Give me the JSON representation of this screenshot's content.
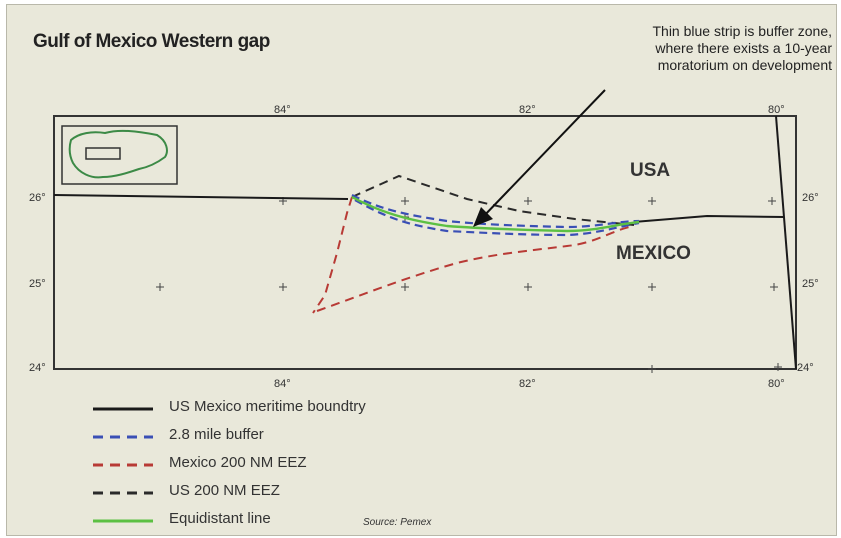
{
  "title": "Gulf of Mexico Western gap",
  "annotation": {
    "lines": [
      "Thin blue strip is buffer zone,",
      "where there exists a 10-year",
      "moratorium on development"
    ]
  },
  "map": {
    "regions": {
      "usa": "USA",
      "mexico": "MEXICO"
    },
    "longitude_labels": [
      "84°",
      "82°",
      "80°"
    ],
    "latitude_labels": [
      "26°",
      "25°",
      "24°"
    ]
  },
  "legend": [
    {
      "label": "US Mexico meritime boundtry",
      "color": "#1a1a1a",
      "style": "solid"
    },
    {
      "label": "2.8 mile buffer",
      "color": "#3a4fb5",
      "style": "dashed"
    },
    {
      "label": "Mexico 200 NM EEZ",
      "color": "#b83a35",
      "style": "dashed"
    },
    {
      "label": "US 200 NM EEZ",
      "color": "#2a2a2a",
      "style": "dashed"
    },
    {
      "label": "Equidistant line",
      "color": "#5cc043",
      "style": "solid"
    }
  ],
  "source": "Source: Pemex"
}
